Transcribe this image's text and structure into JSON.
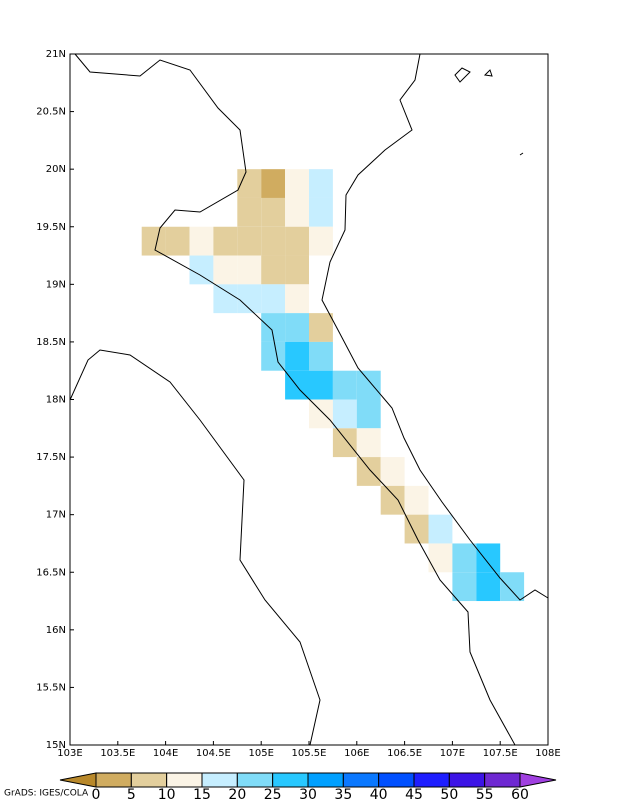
{
  "map": {
    "lon_ticks": [
      {
        "value": 103,
        "label": "103E"
      },
      {
        "value": 103.5,
        "label": "103.5E"
      },
      {
        "value": 104,
        "label": "104E"
      },
      {
        "value": 104.5,
        "label": "104.5E"
      },
      {
        "value": 105,
        "label": "105E"
      },
      {
        "value": 105.5,
        "label": "105.5E"
      },
      {
        "value": 106,
        "label": "106E"
      },
      {
        "value": 106.5,
        "label": "106.5E"
      },
      {
        "value": 107,
        "label": "107E"
      },
      {
        "value": 107.5,
        "label": "107.5E"
      },
      {
        "value": 108,
        "label": "108E"
      }
    ],
    "lat_ticks": [
      {
        "value": 15,
        "label": "15N"
      },
      {
        "value": 15.5,
        "label": "15.5N"
      },
      {
        "value": 16,
        "label": "16N"
      },
      {
        "value": 16.5,
        "label": "16.5N"
      },
      {
        "value": 17,
        "label": "17N"
      },
      {
        "value": 17.5,
        "label": "17.5N"
      },
      {
        "value": 18,
        "label": "18N"
      },
      {
        "value": 18.5,
        "label": "18.5N"
      },
      {
        "value": 19,
        "label": "19N"
      },
      {
        "value": 19.5,
        "label": "19.5N"
      },
      {
        "value": 20,
        "label": "20N"
      },
      {
        "value": 20.5,
        "label": "20.5N"
      },
      {
        "value": 21,
        "label": "21N"
      }
    ],
    "xlim": [
      103,
      108
    ],
    "ylim": [
      15,
      21
    ]
  },
  "field": {
    "lon": [
      104.75,
      105.0,
      105.25,
      105.5,
      104.75,
      105.0,
      105.25,
      105.5,
      103.75,
      104.0,
      104.25,
      104.5,
      104.75,
      105.0,
      105.25,
      105.5,
      104.25,
      104.5,
      104.75,
      105.0,
      105.25,
      104.5,
      104.75,
      105.0,
      105.25,
      105.0,
      105.25,
      105.5,
      105.0,
      105.25,
      105.5,
      105.25,
      105.5,
      105.75,
      106.0,
      105.5,
      105.75,
      106.0,
      105.75,
      106.0,
      106.0,
      106.25,
      106.25,
      106.5,
      106.5,
      106.75,
      106.75,
      107.0,
      107.25,
      107.0,
      107.25,
      107.5
    ],
    "lat": [
      19.75,
      19.75,
      19.75,
      19.75,
      19.5,
      19.5,
      19.5,
      19.5,
      19.25,
      19.25,
      19.25,
      19.25,
      19.25,
      19.25,
      19.25,
      19.25,
      19.0,
      19.0,
      19.0,
      19.0,
      19.0,
      18.75,
      18.75,
      18.75,
      18.75,
      18.5,
      18.5,
      18.5,
      18.25,
      18.25,
      18.25,
      18.0,
      18.0,
      18.0,
      18.0,
      17.75,
      17.75,
      17.75,
      17.5,
      17.5,
      17.25,
      17.25,
      17.0,
      17.0,
      16.75,
      16.75,
      16.5,
      16.5,
      16.5,
      16.25,
      16.25,
      16.25
    ],
    "values": [
      6,
      3,
      12,
      17,
      7,
      7,
      12,
      17,
      7,
      7,
      12,
      8,
      7,
      7,
      8,
      12,
      17,
      12,
      12,
      8,
      6,
      18,
      17,
      18,
      12,
      22,
      20,
      7,
      24,
      27,
      23,
      28,
      28,
      22,
      22,
      12,
      18,
      20,
      8,
      12,
      7,
      12,
      7,
      14,
      8,
      18,
      12,
      22,
      28,
      20,
      25,
      22
    ]
  },
  "colorbar": {
    "levels": [
      0,
      5,
      10,
      15,
      20,
      25,
      30,
      35,
      40,
      45,
      50,
      55,
      60
    ],
    "colors": [
      "#b8882a",
      "#d0ac60",
      "#e3cf9d",
      "#fbf4e6",
      "#c6eeff",
      "#80dcf8",
      "#28c8ff",
      "#00a0ff",
      "#0a78ff",
      "#0050ff",
      "#1e1eff",
      "#3c14e6",
      "#6e28d2",
      "#a040e0"
    ]
  },
  "credit": "GrADS: IGES/COLA"
}
